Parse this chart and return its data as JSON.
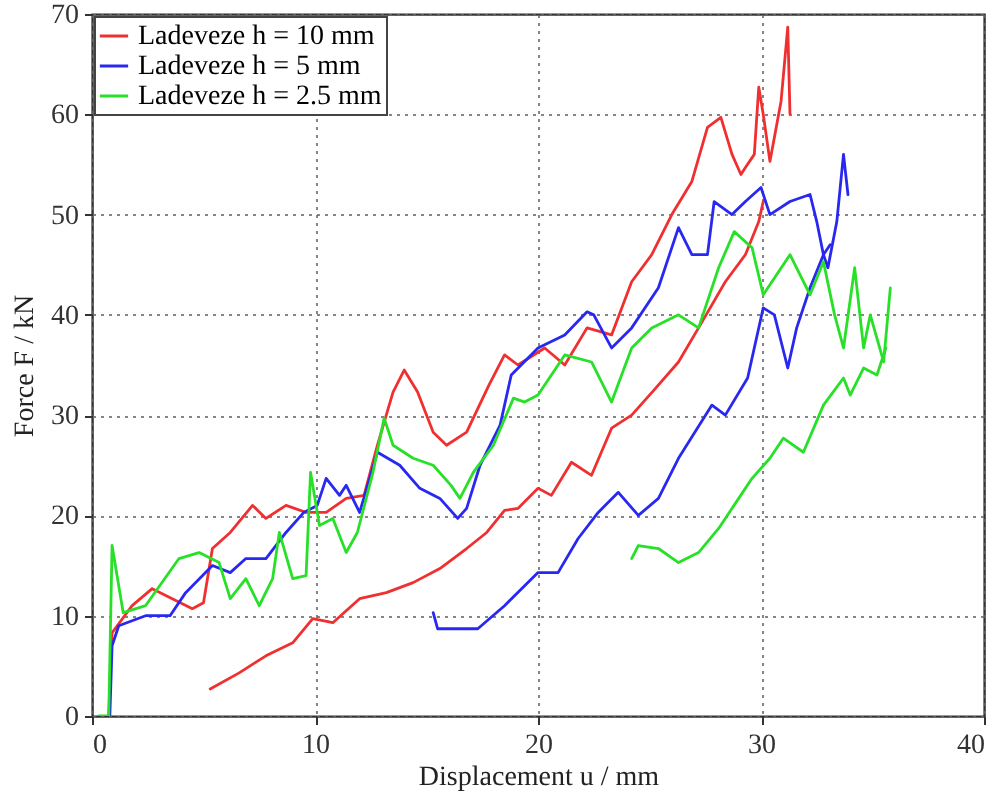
{
  "chart_data": {
    "type": "line",
    "xlabel": "Displacement u / mm",
    "ylabel": "Force F / kN",
    "xlim": [
      0,
      40
    ],
    "ylim": [
      0,
      70
    ],
    "xticks": [
      0,
      10,
      20,
      30,
      40
    ],
    "yticks": [
      0,
      10,
      20,
      30,
      40,
      50,
      60,
      70
    ],
    "grid": true,
    "legend": "top left",
    "marker": "none",
    "line_style": "solid",
    "series": [
      {
        "name": "Ladeveze h = 10 mm",
        "color": "#f03030",
        "x": [
          0.75,
          0.9,
          1.8,
          2.7,
          3.6,
          4.5,
          5,
          5.4,
          6.2,
          7.2,
          7.8,
          8.7,
          9.6,
          10.5,
          11.4,
          12.2,
          12.8,
          13.5,
          14,
          14.6,
          15.3,
          15.9,
          16.8,
          17.8,
          18.5,
          19.1,
          20.3,
          21.2,
          22.2,
          23.3,
          24.2,
          25.1,
          26,
          26.9,
          27.6,
          28.2,
          28.7,
          29.1,
          29.3,
          29.7,
          29.9,
          30.1,
          30.4,
          30.9,
          31.2,
          31.3
        ],
        "values": [
          0,
          8.3,
          11,
          12.7,
          11.7,
          10.7,
          11.3,
          16.7,
          18.3,
          21,
          19.7,
          21,
          20.3,
          20.3,
          21.7,
          22,
          27,
          32.3,
          34.5,
          32.3,
          28.3,
          27,
          28.3,
          33,
          36,
          35,
          36.7,
          35,
          38.7,
          38,
          43.3,
          46,
          50,
          53.3,
          58.7,
          59.7,
          56,
          54,
          54.7,
          56,
          62.7,
          60,
          55.3,
          61.3,
          68.7,
          60
        ]
      },
      {
        "color": "#f03030",
        "x": [
          5.3,
          6.6,
          7.8,
          9,
          9.9,
          10.8,
          12,
          13.2,
          14.4,
          15.6,
          16.8,
          17.7,
          18.5,
          19.1,
          20,
          20.6,
          21.5,
          22.4,
          23.3,
          24.2,
          25.2,
          26.3,
          27.2,
          28.4,
          29.3,
          29.9,
          30.1
        ],
        "values": [
          2.7,
          4.3,
          6,
          7.3,
          9.7,
          9.3,
          11.7,
          12.3,
          13.3,
          14.7,
          16.7,
          18.3,
          20.5,
          20.7,
          22.7,
          22,
          25.3,
          24,
          28.7,
          30,
          32.5,
          35.3,
          38.7,
          43.3,
          46,
          49.3,
          51.3
        ]
      },
      {
        "name": "Ladeveze h = 5 mm",
        "color": "#2828f0",
        "x": [
          0.8,
          0.9,
          1.2,
          2.4,
          3.5,
          4.2,
          5.4,
          6.2,
          6.9,
          7.8,
          8.7,
          9.5,
          10.1,
          10.5,
          11.1,
          11.4,
          12,
          12.8,
          13.8,
          14.7,
          15.6,
          16.4,
          16.8,
          17.4,
          18.3,
          18.8,
          20,
          21.2,
          22.2,
          22.5,
          23.3,
          24.2,
          25.4,
          26.3,
          26.9,
          27.6,
          27.9,
          28.7,
          29.3,
          30,
          30.4,
          31.3,
          32.2,
          32.5,
          32.8,
          33,
          33.4,
          33.7,
          33.9
        ],
        "values": [
          0,
          7,
          9,
          10,
          10,
          12.3,
          15,
          14.3,
          15.7,
          15.7,
          18.3,
          20.3,
          21,
          23.7,
          22,
          23,
          20.3,
          26.3,
          25,
          22.7,
          21.7,
          19.7,
          20.7,
          25,
          29,
          34,
          36.7,
          38,
          40.3,
          40,
          36.7,
          38.7,
          42.7,
          48.7,
          46,
          46,
          51.3,
          50,
          51.3,
          52.7,
          50,
          51.3,
          52,
          49.3,
          46,
          44.7,
          49.3,
          56,
          52
        ]
      },
      {
        "color": "#2828f0",
        "x": [
          15.3,
          15.5,
          16.8,
          17.3,
          18.5,
          20,
          20.9,
          21.8,
          22.7,
          23.6,
          24.5,
          25.4,
          26.3,
          27.8,
          28.4,
          29.4,
          30.1,
          30.6,
          31.2,
          31.6,
          32.2,
          32.8,
          33.1
        ],
        "values": [
          10.3,
          8.7,
          8.7,
          8.7,
          11,
          14.3,
          14.3,
          17.7,
          20.3,
          22.3,
          20,
          21.7,
          25.7,
          31,
          30,
          33.7,
          40.7,
          40,
          34.7,
          38.7,
          42.7,
          46,
          47
        ]
      },
      {
        "name": "Ladeveze h = 2.5 mm",
        "color": "#28e028",
        "x": [
          0.3,
          0.75,
          0.9,
          1.4,
          2.4,
          3.9,
          4.8,
          5.7,
          6.2,
          6.9,
          7.5,
          8.1,
          8.4,
          9,
          9.6,
          9.8,
          10.2,
          10.8,
          11.4,
          11.9,
          12.6,
          13.1,
          13.5,
          14.4,
          15.3,
          16.1,
          16.5,
          17.1,
          18,
          18.9,
          19.4,
          20,
          21.2,
          22.4,
          23.3,
          24.2,
          25.1,
          26.3,
          27.2,
          28.1,
          28.8,
          29.6,
          30.1,
          31.3,
          32.2,
          32.8,
          33.3,
          33.7,
          34.2,
          34.6,
          34.9,
          35.5,
          35.8
        ],
        "values": [
          0,
          0,
          17,
          10.3,
          11,
          15.7,
          16.3,
          15.3,
          11.7,
          13.7,
          11,
          13.7,
          18.3,
          13.7,
          14,
          24.3,
          19,
          19.7,
          16.3,
          18.3,
          24.3,
          29.7,
          27,
          25.7,
          25,
          23,
          21.7,
          24.3,
          27,
          31.7,
          31.3,
          32,
          36,
          35.3,
          31.3,
          36.7,
          38.7,
          40,
          38.7,
          44.7,
          48.3,
          46.7,
          42,
          46,
          42,
          45.3,
          40,
          36.7,
          44.7,
          36.7,
          40,
          35.3,
          42.7
        ]
      },
      {
        "color": "#28e028",
        "x": [
          24.2,
          24.5,
          25.4,
          26.3,
          27.2,
          28.1,
          29,
          29.6,
          30.4,
          31,
          31.9,
          32.8,
          33.7,
          34,
          34.6,
          35.2,
          35.6
        ],
        "values": [
          15.7,
          17,
          16.7,
          15.3,
          16.3,
          18.7,
          21.7,
          23.7,
          25.7,
          27.7,
          26.3,
          31,
          33.7,
          32,
          34.7,
          34,
          36.7
        ]
      }
    ]
  }
}
